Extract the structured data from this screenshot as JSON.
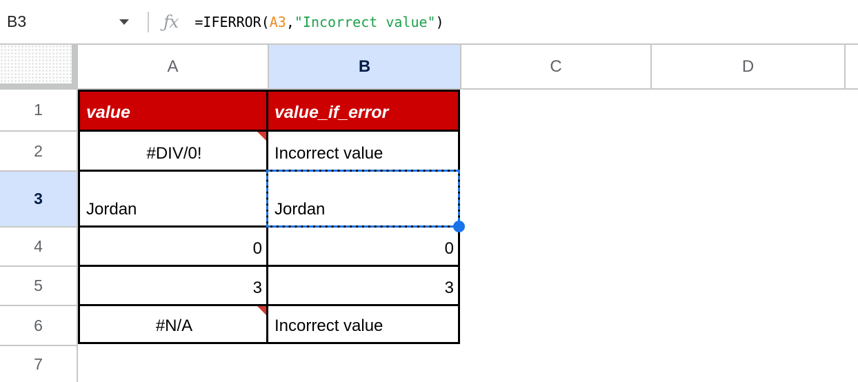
{
  "formula_bar": {
    "cell_ref": "B3",
    "fx_icon": "ƒx",
    "formula_full": "=IFERROR(A3,\"Incorrect value\")",
    "tokens": [
      {
        "text": "=IFERROR(",
        "type": "default"
      },
      {
        "text": "A3",
        "type": "range"
      },
      {
        "text": ",",
        "type": "default"
      },
      {
        "text": "\"Incorrect value\"",
        "type": "string"
      },
      {
        "text": ")",
        "type": "default"
      }
    ]
  },
  "columns": {
    "headers": [
      "A",
      "B",
      "C",
      "D"
    ],
    "selected": "B"
  },
  "rows": {
    "headers": [
      "1",
      "2",
      "3",
      "4",
      "5",
      "6",
      "7"
    ],
    "selected": "3"
  },
  "table": {
    "range": "A1:B6",
    "rows": [
      {
        "A": "value",
        "B": "value_if_error"
      },
      {
        "A": "#DIV/0!",
        "B": "Incorrect value"
      },
      {
        "A": "Jordan",
        "B": "Jordan"
      },
      {
        "A": "0",
        "B": "0"
      },
      {
        "A": "3",
        "B": "3"
      },
      {
        "A": "#N/A",
        "B": "Incorrect value"
      }
    ],
    "error_note_cells": [
      "A2",
      "A6"
    ]
  },
  "selection": {
    "cell": "B3",
    "value": "Jordan"
  },
  "colors": {
    "header_row_red": "#cc0000",
    "header_row_text": "#ffffff",
    "note_triangle_red": "#d13a2e",
    "selection_blue": "#1a73e8",
    "selected_header_bg": "#d3e3fd",
    "selected_header_text": "#041e49",
    "header_text_gray": "#5f6368",
    "gridline_gray": "#c7c7c7",
    "formula_range_orange": "#ef8b1f",
    "formula_string_green": "#1ca24a"
  }
}
